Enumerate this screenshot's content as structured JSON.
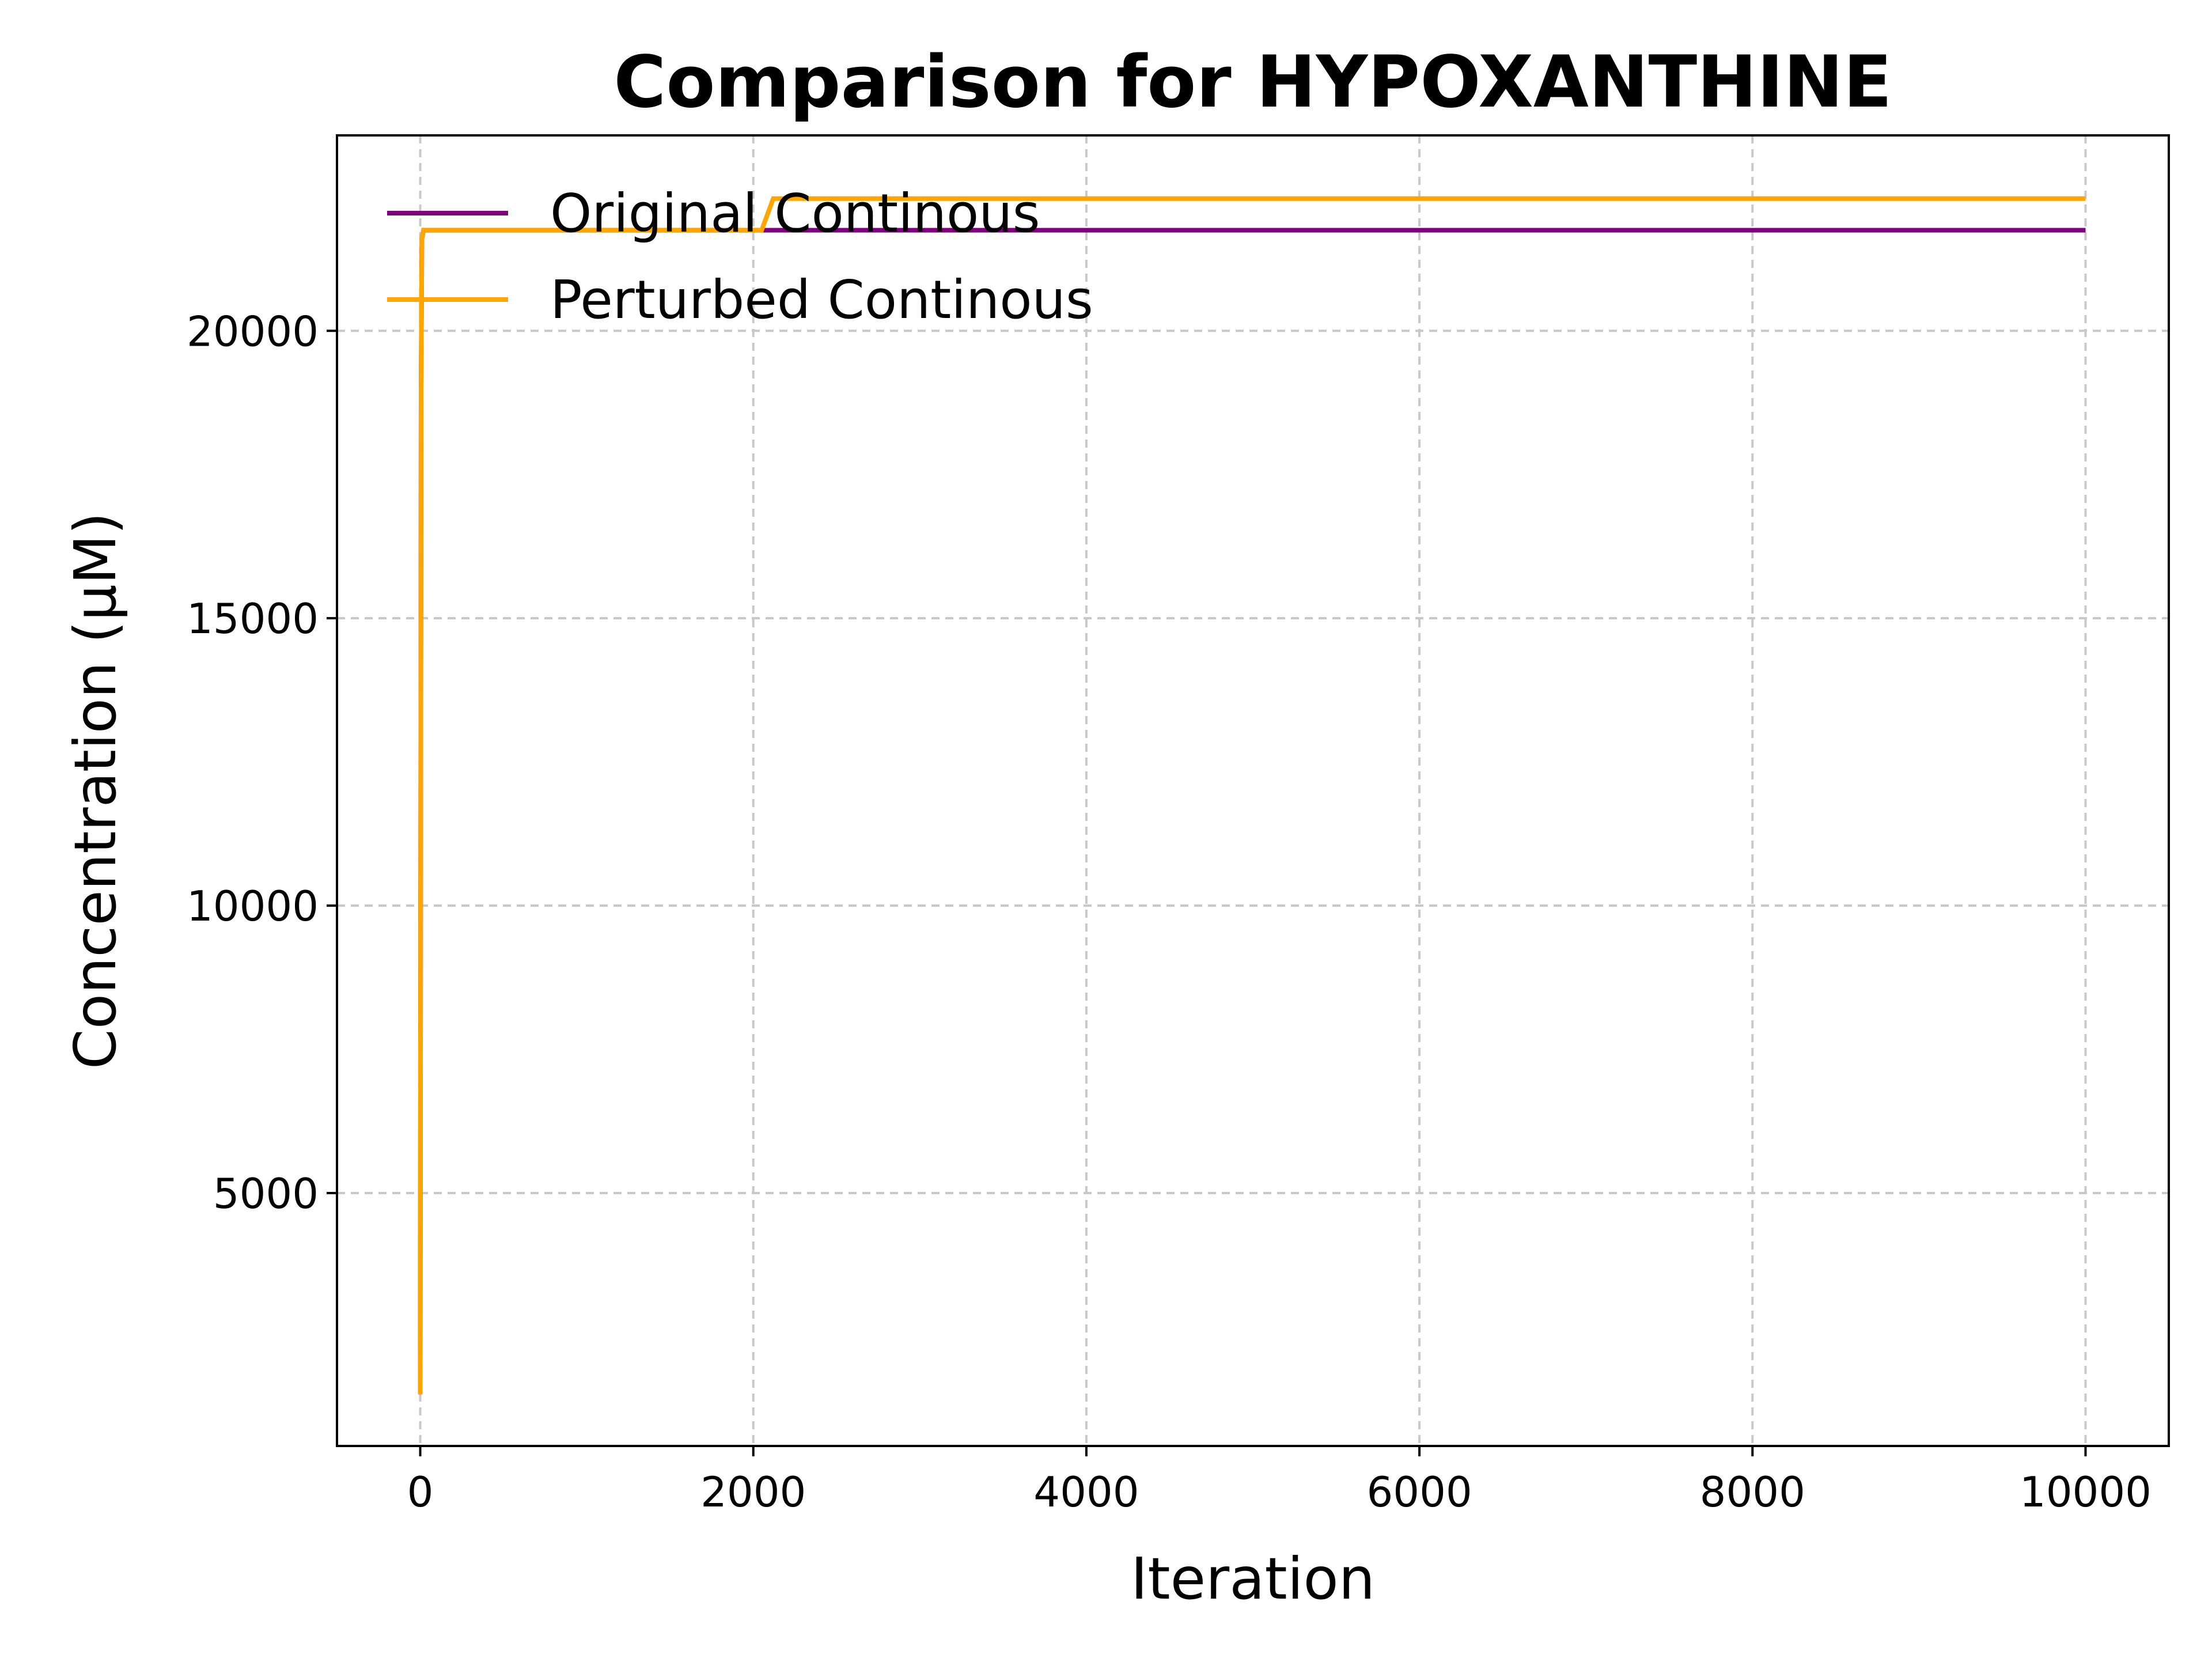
{
  "chart_data": {
    "type": "line",
    "title": "Comparison for HYPOXANTHINE",
    "xlabel": "Iteration",
    "ylabel": "Concentration (μM)",
    "xlim": [
      -500,
      10500
    ],
    "ylim": [
      600,
      23400
    ],
    "xticks": [
      0,
      2000,
      4000,
      6000,
      8000,
      10000
    ],
    "yticks": [
      5000,
      10000,
      15000,
      20000
    ],
    "grid": true,
    "legend_position": "upper-left",
    "series": [
      {
        "name": "Original Continous",
        "color": "#800080",
        "x": [
          0,
          5,
          10,
          20,
          10000
        ],
        "y": [
          1500,
          19000,
          21600,
          21750,
          21750
        ]
      },
      {
        "name": "Perturbed Continous",
        "color": "#FFA500",
        "x": [
          0,
          5,
          10,
          20,
          2050,
          2120,
          10000
        ],
        "y": [
          1500,
          19000,
          21600,
          21750,
          21750,
          22300,
          22300
        ]
      }
    ]
  }
}
